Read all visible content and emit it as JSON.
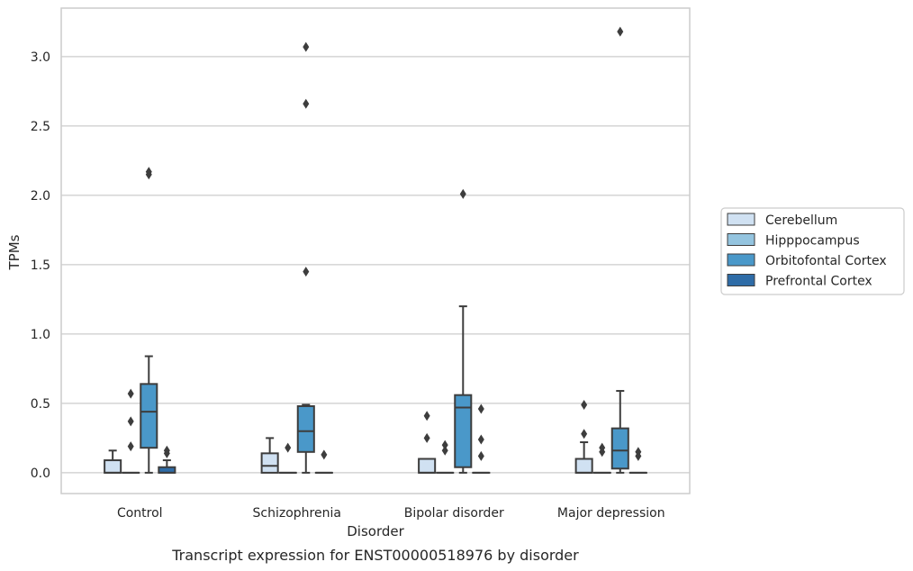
{
  "chart_data": {
    "type": "box",
    "caption": "Transcript expression for ENST00000518976 by disorder",
    "xlabel": "Disorder",
    "ylabel": "TPMs",
    "ylim": [
      -0.15,
      3.35
    ],
    "yticks": [
      0.0,
      0.5,
      1.0,
      1.5,
      2.0,
      2.5,
      3.0
    ],
    "ytick_labels": [
      "0.0",
      "0.5",
      "1.0",
      "1.5",
      "2.0",
      "2.5",
      "3.0"
    ],
    "grid": "horizontal",
    "legend_position": "right",
    "categories": [
      "Control",
      "Schizophrenia",
      "Bipolar disorder",
      "Major depression"
    ],
    "series": [
      {
        "name": "Cerebellum",
        "color": "#d0e1f2",
        "boxes": [
          {
            "q1": 0.0,
            "median": 0.0,
            "q3": 0.09,
            "whisker_low": 0.0,
            "whisker_high": 0.16,
            "outliers": []
          },
          {
            "q1": 0.0,
            "median": 0.05,
            "q3": 0.14,
            "whisker_low": 0.0,
            "whisker_high": 0.25,
            "outliers": []
          },
          {
            "q1": 0.0,
            "median": 0.0,
            "q3": 0.1,
            "whisker_low": 0.0,
            "whisker_high": 0.1,
            "outliers": [
              0.25,
              0.41
            ]
          },
          {
            "q1": 0.0,
            "median": 0.0,
            "q3": 0.1,
            "whisker_low": 0.0,
            "whisker_high": 0.22,
            "outliers": [
              0.28,
              0.49
            ]
          }
        ]
      },
      {
        "name": "Hipppocampus",
        "color": "#94c4df",
        "boxes": [
          {
            "q1": 0.0,
            "median": 0.0,
            "q3": 0.0,
            "whisker_low": 0.0,
            "whisker_high": 0.0,
            "outliers": [
              0.19,
              0.37,
              0.57
            ]
          },
          {
            "q1": 0.0,
            "median": 0.0,
            "q3": 0.0,
            "whisker_low": 0.0,
            "whisker_high": 0.0,
            "outliers": [
              0.18
            ]
          },
          {
            "q1": 0.0,
            "median": 0.0,
            "q3": 0.0,
            "whisker_low": 0.0,
            "whisker_high": 0.0,
            "outliers": [
              0.16,
              0.2
            ]
          },
          {
            "q1": 0.0,
            "median": 0.0,
            "q3": 0.0,
            "whisker_low": 0.0,
            "whisker_high": 0.0,
            "outliers": [
              0.15,
              0.18
            ]
          }
        ]
      },
      {
        "name": "Orbitofontal Cortex",
        "color": "#4a98c9",
        "boxes": [
          {
            "q1": 0.18,
            "median": 0.44,
            "q3": 0.64,
            "whisker_low": 0.0,
            "whisker_high": 0.84,
            "outliers": [
              2.15,
              2.17
            ]
          },
          {
            "q1": 0.15,
            "median": 0.3,
            "q3": 0.48,
            "whisker_low": 0.0,
            "whisker_high": 0.49,
            "outliers": [
              1.45,
              2.66,
              3.07
            ]
          },
          {
            "q1": 0.04,
            "median": 0.47,
            "q3": 0.56,
            "whisker_low": 0.0,
            "whisker_high": 1.2,
            "outliers": [
              2.01
            ]
          },
          {
            "q1": 0.03,
            "median": 0.16,
            "q3": 0.32,
            "whisker_low": 0.0,
            "whisker_high": 0.59,
            "outliers": [
              3.18
            ]
          }
        ]
      },
      {
        "name": "Prefrontal Cortex",
        "color": "#2e6ca7",
        "boxes": [
          {
            "q1": 0.0,
            "median": 0.0,
            "q3": 0.04,
            "whisker_low": 0.0,
            "whisker_high": 0.09,
            "outliers": [
              0.14,
              0.16
            ]
          },
          {
            "q1": 0.0,
            "median": 0.0,
            "q3": 0.0,
            "whisker_low": 0.0,
            "whisker_high": 0.0,
            "outliers": [
              0.13
            ]
          },
          {
            "q1": 0.0,
            "median": 0.0,
            "q3": 0.0,
            "whisker_low": 0.0,
            "whisker_high": 0.0,
            "outliers": [
              0.12,
              0.24,
              0.46
            ]
          },
          {
            "q1": 0.0,
            "median": 0.0,
            "q3": 0.0,
            "whisker_low": 0.0,
            "whisker_high": 0.0,
            "outliers": [
              0.12,
              0.15
            ]
          }
        ]
      }
    ]
  }
}
